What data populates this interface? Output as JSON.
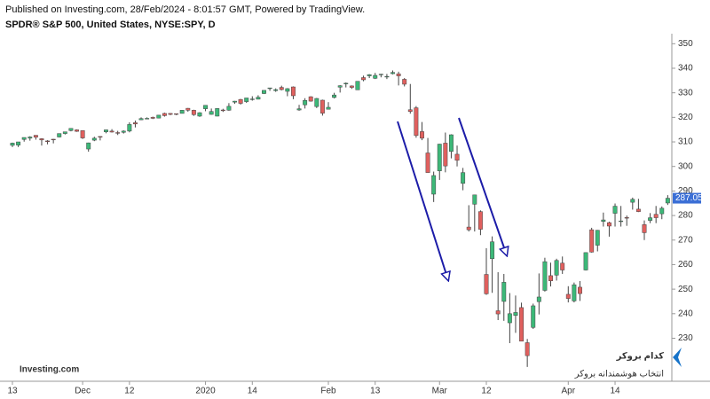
{
  "chart_data": {
    "type": "candlestick",
    "header": "Published on Investing.com, 28/Feb/2024 - 8:01:57 GMT, Powered by TradingView.",
    "title": "SPDR® S&P 500, United States, NYSE:SPY, D",
    "logo": "Investing.com",
    "watermark": "کدام بروکر",
    "watermark_subtitle": "انتخاب هوشمندانه بروکر",
    "up_color": "#3cb878",
    "down_color": "#e0605e",
    "last_price_color": "#3b6fd6",
    "grid": false,
    "ylim": [
      215,
      353
    ],
    "yticks": [
      230,
      240,
      250,
      260,
      270,
      280,
      290,
      300,
      310,
      320,
      330,
      340,
      350
    ],
    "xlim": [
      -0.2,
      112.2
    ],
    "xticks": [
      {
        "value": 0,
        "label": "13"
      },
      {
        "value": 12,
        "label": "Dec"
      },
      {
        "value": 20,
        "label": "12"
      },
      {
        "value": 33,
        "label": "2020"
      },
      {
        "value": 41,
        "label": "14"
      },
      {
        "value": 54,
        "label": "Feb"
      },
      {
        "value": 62,
        "label": "13"
      },
      {
        "value": 73,
        "label": "Mar"
      },
      {
        "value": 81,
        "label": "12"
      },
      {
        "value": 95,
        "label": "Apr"
      },
      {
        "value": 103,
        "label": "14"
      }
    ],
    "candles": [
      [
        308.6,
        309.7,
        307.9,
        309.5
      ],
      [
        308.7,
        310.0,
        307.9,
        310.0
      ],
      [
        311.0,
        311.8,
        310.1,
        311.8
      ],
      [
        311.5,
        312.3,
        310.5,
        312.0
      ],
      [
        312.7,
        312.7,
        310.9,
        311.9
      ],
      [
        311.3,
        311.5,
        308.5,
        310.8
      ],
      [
        310.4,
        310.7,
        309.0,
        310.3
      ],
      [
        311.1,
        311.2,
        309.4,
        311.0
      ],
      [
        312.0,
        313.4,
        311.8,
        313.4
      ],
      [
        313.4,
        314.1,
        313.0,
        314.1
      ],
      [
        314.6,
        315.5,
        314.3,
        315.5
      ],
      [
        314.9,
        315.1,
        314.1,
        314.3
      ],
      [
        314.6,
        314.7,
        311.2,
        311.6
      ],
      [
        307.1,
        309.7,
        306.0,
        309.6
      ],
      [
        310.7,
        312.1,
        310.3,
        311.5
      ],
      [
        312.2,
        312.3,
        310.6,
        312.0
      ],
      [
        314.1,
        315.0,
        313.5,
        314.9
      ],
      [
        314.4,
        315.2,
        313.8,
        314.0
      ],
      [
        313.8,
        314.5,
        312.8,
        313.5
      ],
      [
        313.9,
        314.7,
        313.4,
        314.4
      ],
      [
        314.4,
        318.0,
        313.9,
        317.1
      ],
      [
        317.8,
        318.7,
        315.9,
        317.3
      ],
      [
        319.0,
        320.0,
        318.9,
        319.5
      ],
      [
        319.6,
        320.0,
        319.3,
        319.6
      ],
      [
        320.0,
        320.3,
        319.3,
        319.6
      ],
      [
        319.7,
        320.9,
        319.6,
        320.9
      ],
      [
        321.6,
        321.9,
        320.3,
        320.7
      ],
      [
        321.6,
        321.7,
        320.9,
        321.2
      ],
      [
        321.5,
        321.5,
        320.9,
        321.2
      ],
      [
        321.6,
        322.9,
        321.6,
        322.9
      ],
      [
        323.7,
        323.8,
        322.3,
        322.9
      ],
      [
        322.9,
        323.1,
        320.6,
        321.1
      ],
      [
        320.5,
        322.1,
        320.2,
        321.9
      ],
      [
        323.5,
        324.9,
        322.5,
        324.9
      ],
      [
        321.2,
        323.6,
        321.1,
        322.4
      ],
      [
        320.5,
        323.7,
        320.4,
        323.6
      ],
      [
        323.0,
        323.5,
        322.2,
        322.7
      ],
      [
        322.9,
        325.8,
        322.7,
        324.5
      ],
      [
        326.2,
        326.7,
        325.5,
        326.6
      ],
      [
        327.3,
        327.5,
        325.2,
        325.7
      ],
      [
        326.4,
        327.9,
        325.9,
        327.9
      ],
      [
        327.4,
        328.6,
        326.8,
        327.5
      ],
      [
        327.4,
        329.0,
        327.3,
        328.2
      ],
      [
        329.7,
        331.0,
        329.5,
        331.0
      ],
      [
        331.7,
        332.0,
        330.8,
        332.0
      ],
      [
        330.9,
        331.8,
        330.4,
        331.3
      ],
      [
        332.2,
        332.9,
        331.0,
        331.3
      ],
      [
        330.6,
        331.9,
        328.6,
        331.7
      ],
      [
        332.4,
        332.6,
        327.4,
        328.8
      ],
      [
        323.0,
        325.1,
        322.7,
        323.5
      ],
      [
        325.1,
        327.8,
        323.6,
        326.9
      ],
      [
        328.4,
        328.6,
        326.4,
        326.6
      ],
      [
        324.4,
        327.9,
        323.8,
        327.7
      ],
      [
        327.0,
        327.2,
        320.7,
        321.7
      ],
      [
        323.3,
        326.2,
        323.2,
        324.1
      ],
      [
        328.1,
        330.0,
        327.7,
        329.1
      ],
      [
        332.3,
        333.1,
        330.1,
        332.9
      ],
      [
        333.9,
        334.2,
        332.2,
        333.9
      ],
      [
        332.8,
        333.0,
        331.6,
        332.2
      ],
      [
        331.2,
        334.7,
        331.2,
        334.7
      ],
      [
        336.2,
        337.0,
        334.7,
        335.3
      ],
      [
        336.9,
        337.6,
        336.0,
        337.4
      ],
      [
        335.9,
        338.1,
        335.6,
        337.1
      ],
      [
        337.5,
        337.7,
        336.3,
        337.6
      ],
      [
        336.5,
        337.7,
        335.6,
        336.7
      ],
      [
        337.8,
        339.1,
        337.5,
        338.3
      ],
      [
        337.7,
        338.6,
        333.0,
        336.9
      ],
      [
        335.5,
        336.0,
        332.6,
        333.5
      ],
      [
        323.1,
        333.6,
        321.5,
        322.4
      ],
      [
        323.9,
        324.6,
        311.7,
        312.6
      ],
      [
        314.2,
        318.1,
        310.7,
        311.5
      ],
      [
        305.5,
        311.6,
        297.5,
        297.5
      ],
      [
        288.7,
        297.9,
        285.5,
        296.3
      ],
      [
        298.2,
        309.2,
        294.5,
        309.1
      ],
      [
        309.5,
        313.8,
        297.6,
        300.2
      ],
      [
        306.1,
        313.1,
        303.3,
        312.9
      ],
      [
        304.98,
        308.5,
        300.0,
        302.5
      ],
      [
        293.1,
        299.4,
        290.3,
        297.5
      ],
      [
        275.3,
        284.2,
        273.5,
        274.2
      ],
      [
        284.6,
        288.5,
        273.5,
        288.4
      ],
      [
        281.6,
        282.1,
        272.0,
        274.4
      ],
      [
        256.0,
        266.7,
        247.7,
        248.1
      ],
      [
        262.4,
        271.5,
        248.5,
        269.3
      ],
      [
        241.2,
        256.9,
        237.4,
        239.9
      ],
      [
        245.0,
        256.2,
        237.1,
        252.8
      ],
      [
        236.3,
        248.4,
        228.0,
        240.0
      ],
      [
        239.3,
        247.4,
        232.2,
        240.5
      ],
      [
        242.5,
        244.5,
        228.8,
        228.8
      ],
      [
        228.2,
        229.7,
        218.3,
        222.9
      ],
      [
        234.4,
        244.1,
        233.8,
        243.2
      ],
      [
        244.9,
        256.4,
        239.7,
        246.8
      ],
      [
        249.5,
        262.8,
        249.0,
        261.2
      ],
      [
        255.5,
        260.8,
        251.1,
        253.4
      ],
      [
        255.7,
        262.4,
        253.5,
        261.7
      ],
      [
        260.6,
        263.3,
        256.2,
        257.8
      ],
      [
        247.9,
        251.2,
        244.6,
        246.2
      ],
      [
        245.2,
        252.7,
        244.6,
        251.8
      ],
      [
        250.8,
        253.3,
        245.2,
        248.2
      ],
      [
        257.8,
        265.0,
        257.6,
        264.9
      ],
      [
        274.2,
        275.0,
        264.9,
        265.1
      ],
      [
        267.9,
        274.1,
        265.4,
        274.0
      ],
      [
        277.6,
        281.2,
        275.5,
        278.2
      ],
      [
        277.1,
        277.5,
        271.4,
        275.7
      ],
      [
        280.9,
        284.9,
        275.5,
        283.8
      ],
      [
        277.6,
        283.9,
        275.5,
        277.8
      ],
      [
        279.2,
        280.0,
        275.8,
        279.1
      ],
      [
        285.4,
        287.3,
        282.4,
        286.6
      ],
      [
        282.6,
        286.8,
        281.4,
        281.6
      ],
      [
        276.3,
        278.0,
        270.0,
        273.0
      ],
      [
        278.0,
        281.0,
        276.9,
        279.1
      ],
      [
        280.5,
        283.9,
        276.9,
        279.1
      ],
      [
        280.7,
        283.7,
        278.5,
        282.97
      ],
      [
        285.1,
        288.3,
        284.3,
        287.05
      ]
    ]
  }
}
